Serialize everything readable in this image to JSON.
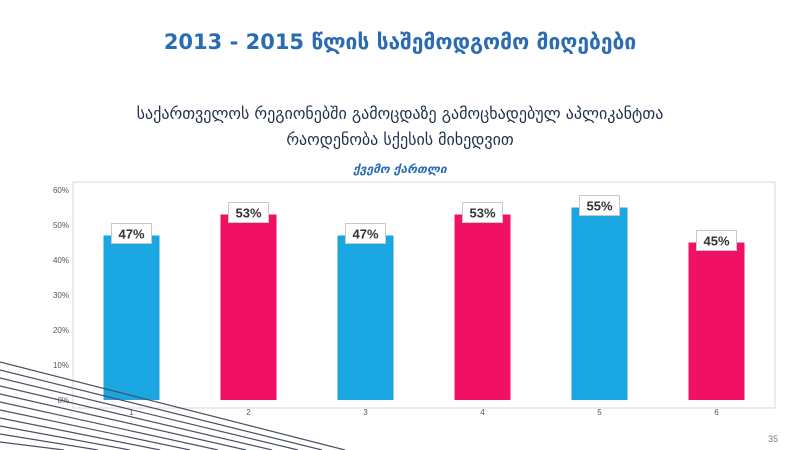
{
  "slide": {
    "title": "2013 - 2015 წლის საშემოდგომო მიღებები",
    "subtitle_line1": "საქართველოს რეგიონებში გამოცდაზე გამოცხადებულ აპლიკანტთა",
    "subtitle_line2": "რაოდენობა სქესის მიხედვით",
    "region": "ქვემო ქართლი",
    "page_number": "35"
  },
  "colors": {
    "blue": "#1aa6e0",
    "pink": "#f01164",
    "title": "#2a6bb3"
  },
  "chart_data": {
    "type": "bar",
    "title": "",
    "xlabel": "",
    "ylabel": "",
    "categories": [
      "1",
      "2",
      "3",
      "4",
      "5",
      "6"
    ],
    "values": [
      47,
      53,
      47,
      53,
      55,
      45
    ],
    "data_labels": [
      "47%",
      "53%",
      "47%",
      "53%",
      "55%",
      "45%"
    ],
    "bar_colors": [
      "#1aa6e0",
      "#f01164",
      "#1aa6e0",
      "#f01164",
      "#1aa6e0",
      "#f01164"
    ],
    "y_ticks": [
      "0%",
      "10%",
      "20%",
      "30%",
      "40%",
      "50%",
      "60%"
    ],
    "ylim": [
      0,
      60
    ],
    "grid": false,
    "legend": "none"
  }
}
